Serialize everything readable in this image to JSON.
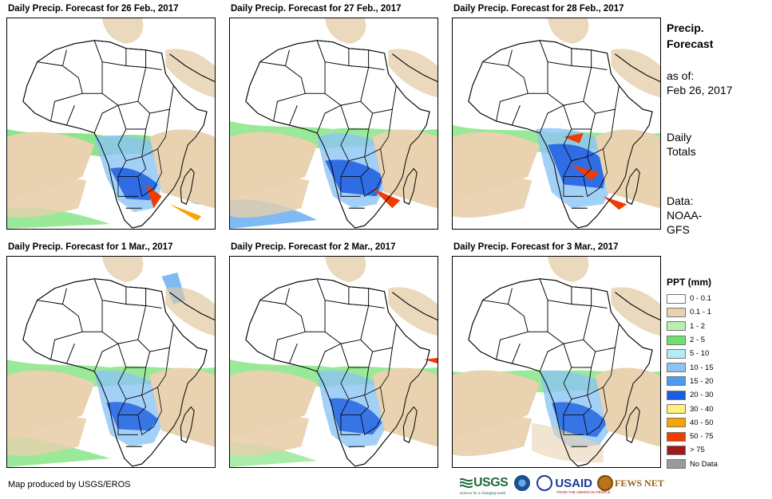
{
  "panels": [
    {
      "title": "Daily Precip. Forecast for 26 Feb., 2017"
    },
    {
      "title": "Daily Precip. Forecast for 27 Feb., 2017"
    },
    {
      "title": "Daily Precip. Forecast for 28 Feb., 2017"
    },
    {
      "title": "Daily Precip. Forecast for 1 Mar., 2017"
    },
    {
      "title": "Daily Precip. Forecast for 2 Mar., 2017"
    },
    {
      "title": "Daily Precip. Forecast for 3 Mar., 2017"
    }
  ],
  "sidebar": {
    "title_line1": "Precip.",
    "title_line2": "Forecast",
    "asof_label": "as of:",
    "asof_date": "Feb 26, 2017",
    "totals_line1": "Daily",
    "totals_line2": "Totals",
    "data_label": "Data:",
    "data_line1": "NOAA-",
    "data_line2": "GFS"
  },
  "legend": {
    "title": "PPT (mm)",
    "items": [
      {
        "label": "0 - 0.1",
        "color": "#ffffff"
      },
      {
        "label": "0.1 - 1",
        "color": "#e8d2b0"
      },
      {
        "label": "1 - 2",
        "color": "#b8f0b0"
      },
      {
        "label": "2 - 5",
        "color": "#6ee06e"
      },
      {
        "label": "5 - 10",
        "color": "#b4ecf4"
      },
      {
        "label": "10 - 15",
        "color": "#8cc4f4"
      },
      {
        "label": "15 - 20",
        "color": "#4a9cf0"
      },
      {
        "label": "20 - 30",
        "color": "#1c5ce0"
      },
      {
        "label": "30 - 40",
        "color": "#fff07a"
      },
      {
        "label": "40 - 50",
        "color": "#f5a400"
      },
      {
        "label": "50 - 75",
        "color": "#f03c00"
      },
      {
        "label": "> 75",
        "color": "#a01818"
      },
      {
        "label": "No Data",
        "color": "#9a9a9a"
      }
    ]
  },
  "footer": {
    "credit": "Map produced by USGS/EROS"
  },
  "logos": {
    "usgs": "USGS",
    "usgs_tagline": "science for a changing world",
    "usaid": "USAID",
    "usaid_tagline": "FROM THE AMERICAN PEOPLE",
    "fews": "FEWS NET"
  }
}
